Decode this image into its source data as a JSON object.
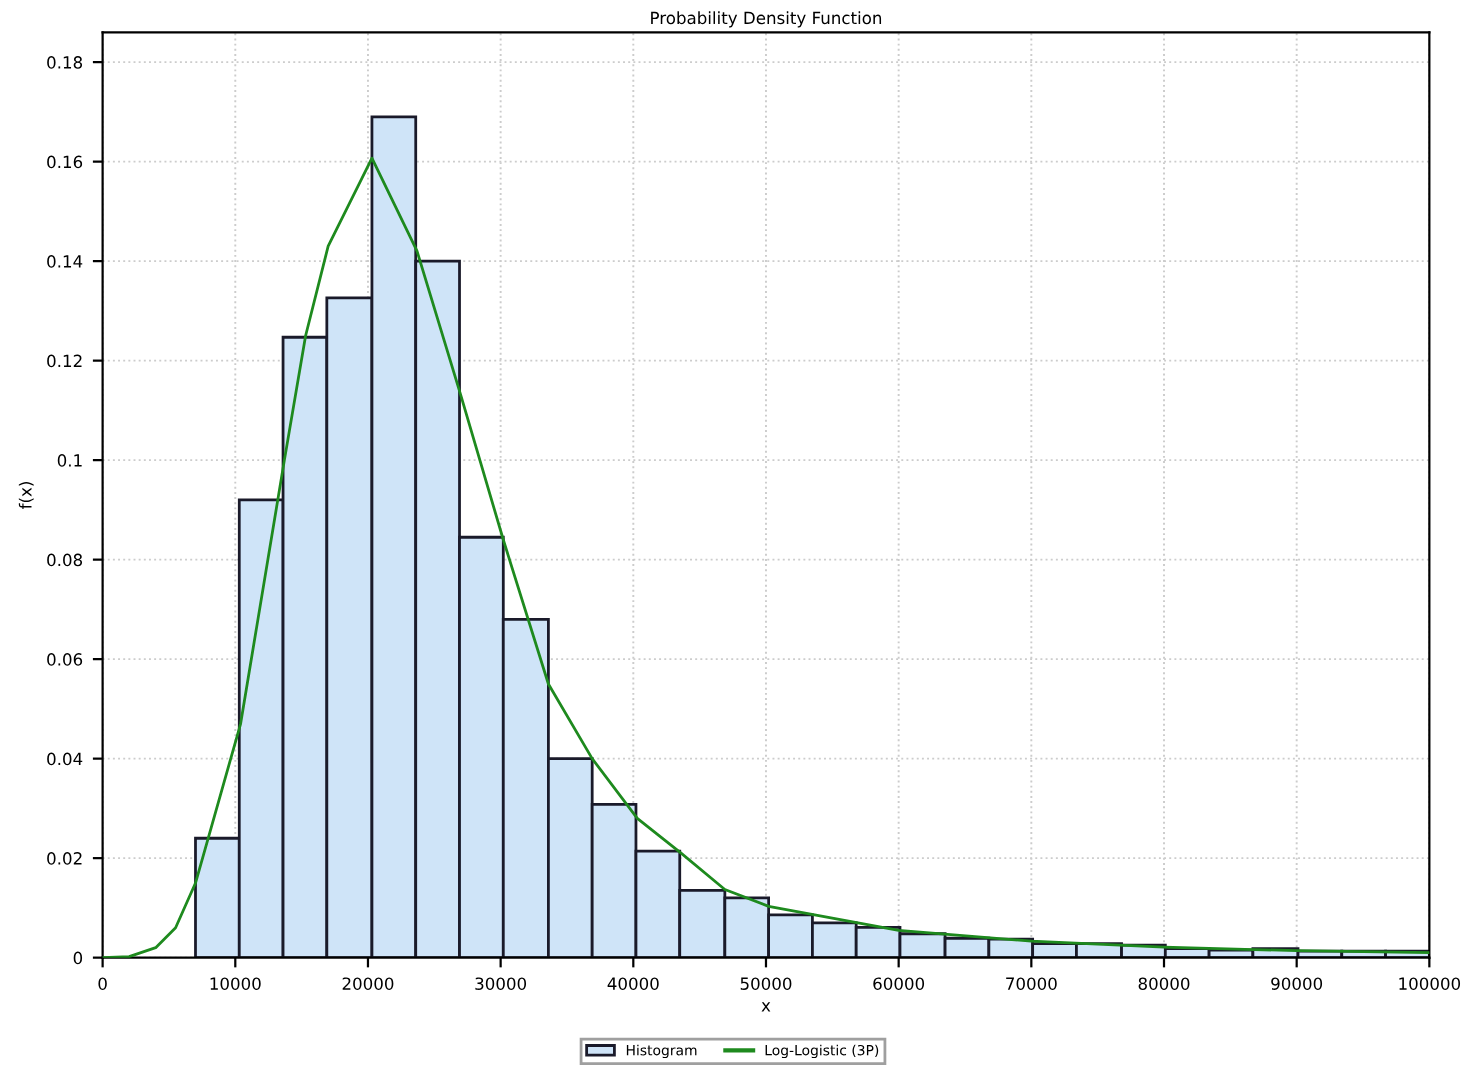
{
  "chart_data": {
    "type": "histogram",
    "title": "Probability Density Function",
    "xlabel": "x",
    "ylabel": "f(x)",
    "xlim": [
      0,
      100000
    ],
    "xticks": [
      0,
      10000,
      20000,
      30000,
      40000,
      50000,
      60000,
      70000,
      80000,
      90000,
      100000
    ],
    "ylim": [
      0,
      0.186
    ],
    "yticks": [
      0,
      0.02,
      0.04,
      0.06,
      0.08,
      0.1,
      0.12,
      0.14,
      0.16,
      0.18
    ],
    "grid": true,
    "legend": "bottom",
    "series": [
      {
        "name": "Histogram",
        "color": "#cfe4f8",
        "bins": [
          7000,
          10300,
          13600,
          16900,
          20300,
          23600,
          26900,
          30200,
          33600,
          36900,
          40200,
          43500,
          46900,
          50200,
          53500,
          56800,
          60100,
          63500,
          66800,
          70100,
          73400,
          76800,
          80100,
          83400,
          86700,
          90100,
          93400,
          96700,
          100000
        ],
        "values": [
          0.024,
          0.092,
          0.1247,
          0.1326,
          0.169,
          0.14,
          0.0845,
          0.068,
          0.04,
          0.0308,
          0.0214,
          0.0135,
          0.012,
          0.0086,
          0.007,
          0.0061,
          0.0048,
          0.0039,
          0.0037,
          0.0028,
          0.0028,
          0.0025,
          0.0018,
          0.0015,
          0.0018,
          0.0013,
          0.0013,
          0.0013
        ]
      },
      {
        "name": "Log-Logistic (3P)",
        "type": "line",
        "color": "#1e8a1e",
        "x": [
          0,
          2000,
          4000,
          5500,
          7000,
          10400,
          13700,
          15300,
          17000,
          20300,
          23700,
          27000,
          30200,
          33600,
          36900,
          40300,
          43600,
          46900,
          50200,
          60000,
          70000,
          80000,
          90000,
          100000
        ],
        "values": [
          0,
          0.0002,
          0.002,
          0.006,
          0.015,
          0.047,
          0.1,
          0.125,
          0.143,
          0.1607,
          0.142,
          0.113,
          0.084,
          0.055,
          0.04,
          0.028,
          0.021,
          0.0137,
          0.0103,
          0.0055,
          0.0033,
          0.0021,
          0.0014,
          0.001
        ]
      }
    ]
  }
}
